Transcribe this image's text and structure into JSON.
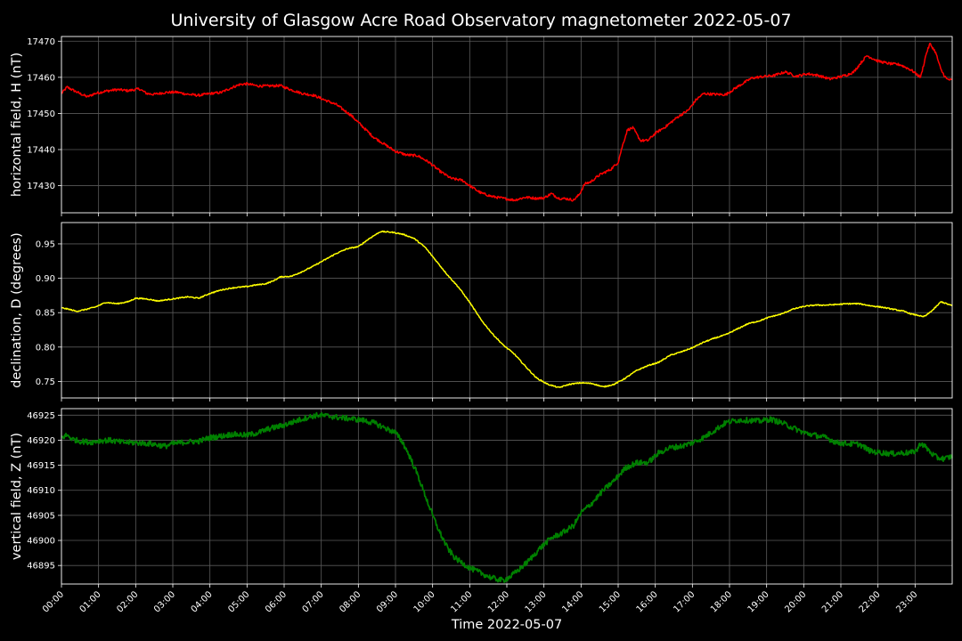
{
  "chart_data": {
    "type": "line",
    "title": "University of Glasgow Acre Road Observatory magnetometer 2022-05-07",
    "xlabel": "Time 2022-05-07",
    "x_tick_labels": [
      "00:00",
      "01:00",
      "02:00",
      "03:00",
      "04:00",
      "05:00",
      "06:00",
      "07:00",
      "08:00",
      "09:00",
      "10:00",
      "11:00",
      "12:00",
      "13:00",
      "14:00",
      "15:00",
      "16:00",
      "17:00",
      "18:00",
      "19:00",
      "20:00",
      "21:00",
      "22:00",
      "23:00"
    ],
    "x_unit": "hours",
    "xlim": [
      0,
      24
    ],
    "grid": true,
    "background": "#000000",
    "panels": [
      {
        "ylabel": "horizontal field, H (nT)",
        "color": "#ff0000",
        "ylim": [
          17422.5,
          17471.3
        ],
        "yticks": [
          17430,
          17440,
          17450,
          17460,
          17470
        ],
        "ytick_labels": [
          "17430",
          "17440",
          "17450",
          "17460",
          "17470"
        ],
        "noise": 0.35,
        "x": [
          0,
          0.15,
          0.3,
          0.5,
          0.7,
          0.9,
          1.2,
          1.5,
          1.8,
          2.1,
          2.3,
          2.5,
          2.8,
          3.1,
          3.4,
          3.7,
          4.0,
          4.3,
          4.6,
          4.8,
          5.0,
          5.3,
          5.6,
          5.9,
          6.2,
          6.5,
          6.8,
          7.1,
          7.4,
          7.8,
          8.1,
          8.4,
          8.7,
          9.0,
          9.3,
          9.6,
          9.9,
          10.2,
          10.5,
          10.8,
          11.0,
          11.3,
          11.6,
          11.9,
          12.2,
          12.5,
          12.8,
          13.0,
          13.2,
          13.4,
          13.6,
          13.8,
          13.95,
          14.1,
          14.25,
          14.5,
          14.8,
          15.0,
          15.1,
          15.25,
          15.4,
          15.6,
          15.8,
          16.0,
          16.3,
          16.6,
          16.9,
          17.1,
          17.3,
          17.6,
          17.9,
          18.2,
          18.6,
          18.9,
          19.2,
          19.5,
          19.8,
          20.1,
          20.4,
          20.7,
          21.0,
          21.2,
          21.35,
          21.5,
          21.7,
          22.0,
          22.3,
          22.6,
          22.9,
          23.15,
          23.3,
          23.4,
          23.55,
          23.7,
          23.85,
          24.0
        ],
        "y": [
          17455.5,
          17457.3,
          17456.5,
          17455.5,
          17454.6,
          17455.5,
          17456.2,
          17456.6,
          17456.3,
          17456.8,
          17455.5,
          17455.3,
          17455.8,
          17455.9,
          17455.3,
          17455.0,
          17455.5,
          17455.8,
          17457.2,
          17458.0,
          17458.2,
          17457.6,
          17457.6,
          17457.7,
          17456.5,
          17455.5,
          17455.0,
          17453.7,
          17452.5,
          17449.5,
          17446.5,
          17443.5,
          17441.5,
          17439.5,
          17438.5,
          17438.3,
          17436.5,
          17434.0,
          17432.0,
          17431.5,
          17430.0,
          17428.0,
          17427.0,
          17426.5,
          17426.0,
          17426.8,
          17426.5,
          17426.6,
          17427.8,
          17426.5,
          17426.4,
          17426.0,
          17427.5,
          17430.5,
          17431.0,
          17433.0,
          17434.5,
          17436.5,
          17440.5,
          17445.5,
          17446.0,
          17442.5,
          17442.5,
          17444.5,
          17446.5,
          17449.0,
          17451.0,
          17453.8,
          17455.5,
          17455.3,
          17455.2,
          17457.3,
          17459.8,
          17460.2,
          17460.5,
          17461.5,
          17460.3,
          17461.0,
          17460.5,
          17459.5,
          17460.2,
          17460.8,
          17461.5,
          17463.5,
          17466.0,
          17464.5,
          17463.8,
          17463.5,
          17462.0,
          17460.0,
          17466.5,
          17469.3,
          17467.0,
          17462.0,
          17459.5,
          17459.2
        ]
      },
      {
        "ylabel": "declination, D (degrees)",
        "color": "#ffff00",
        "ylim": [
          0.726,
          0.981
        ],
        "yticks": [
          0.75,
          0.8,
          0.85,
          0.9,
          0.95
        ],
        "ytick_labels": [
          "0.75",
          "0.80",
          "0.85",
          "0.90",
          "0.95"
        ],
        "noise": 0.0008,
        "x": [
          0,
          0.2,
          0.4,
          0.6,
          0.9,
          1.2,
          1.5,
          1.8,
          2.0,
          2.3,
          2.6,
          3.0,
          3.4,
          3.7,
          4.0,
          4.3,
          4.6,
          5.0,
          5.2,
          5.5,
          5.7,
          5.9,
          6.2,
          6.5,
          6.8,
          7.1,
          7.4,
          7.7,
          8.0,
          8.3,
          8.6,
          8.9,
          9.2,
          9.5,
          9.8,
          10.1,
          10.4,
          10.7,
          11.0,
          11.3,
          11.6,
          11.9,
          12.2,
          12.5,
          12.8,
          13.1,
          13.4,
          13.7,
          14.0,
          14.3,
          14.6,
          14.9,
          15.2,
          15.5,
          15.8,
          16.1,
          16.4,
          16.7,
          17.0,
          17.3,
          17.6,
          17.9,
          18.2,
          18.5,
          18.8,
          19.1,
          19.4,
          19.7,
          20.0,
          20.3,
          20.6,
          20.9,
          21.2,
          21.5,
          21.8,
          22.1,
          22.4,
          22.7,
          22.9,
          23.1,
          23.2,
          23.3,
          23.5,
          23.7,
          23.85,
          24.0
        ],
        "y": [
          0.857,
          0.855,
          0.852,
          0.854,
          0.858,
          0.865,
          0.863,
          0.866,
          0.871,
          0.87,
          0.867,
          0.87,
          0.873,
          0.871,
          0.878,
          0.883,
          0.886,
          0.888,
          0.89,
          0.892,
          0.896,
          0.902,
          0.903,
          0.91,
          0.918,
          0.927,
          0.936,
          0.943,
          0.946,
          0.958,
          0.968,
          0.967,
          0.964,
          0.958,
          0.945,
          0.925,
          0.905,
          0.887,
          0.865,
          0.84,
          0.82,
          0.803,
          0.79,
          0.772,
          0.755,
          0.746,
          0.741,
          0.746,
          0.748,
          0.747,
          0.742,
          0.746,
          0.755,
          0.766,
          0.773,
          0.778,
          0.788,
          0.793,
          0.799,
          0.807,
          0.813,
          0.818,
          0.826,
          0.834,
          0.838,
          0.844,
          0.848,
          0.855,
          0.859,
          0.861,
          0.861,
          0.862,
          0.863,
          0.863,
          0.86,
          0.858,
          0.855,
          0.852,
          0.848,
          0.846,
          0.844,
          0.846,
          0.855,
          0.866,
          0.863,
          0.86
        ],
        "x_full": [
          0,
          0.25,
          0.5,
          0.75,
          1,
          1.25,
          1.5,
          1.75,
          2,
          2.25,
          2.5,
          2.75,
          3,
          3.25,
          3.5,
          3.75,
          4,
          4.25,
          4.5,
          4.75,
          5,
          5.25,
          5.5,
          5.75,
          6,
          6.25,
          6.5,
          6.75,
          7,
          7.25,
          7.5,
          7.75,
          8,
          8.25,
          8.5,
          8.75,
          9,
          9.25,
          9.5,
          9.75,
          10,
          10.25,
          10.5,
          10.75,
          11,
          11.25,
          11.5,
          11.75,
          12,
          12.25,
          12.5,
          12.75,
          13,
          13.25,
          13.5,
          13.75,
          14,
          14.25,
          14.5,
          14.75,
          15,
          15.25,
          15.5,
          15.75,
          16,
          16.25,
          16.5,
          16.75,
          17,
          17.25,
          17.5,
          17.75,
          18,
          18.25,
          18.5,
          18.75,
          19,
          19.25,
          19.5,
          19.75,
          20,
          20.25,
          20.5,
          20.75,
          21,
          21.25,
          21.5,
          21.75,
          22,
          22.25,
          22.5,
          22.75,
          23,
          23.25,
          23.5,
          23.75,
          24
        ]
      },
      {
        "ylabel": "vertical field, Z (nT)",
        "color": "#008000",
        "ylim": [
          46891.3,
          46926.3
        ],
        "yticks": [
          46895,
          46900,
          46905,
          46910,
          46915,
          46920,
          46925
        ],
        "ytick_labels": [
          "46895",
          "46900",
          "46905",
          "46910",
          "46915",
          "46920",
          "46925"
        ],
        "noise": 0.55,
        "x": [
          0,
          0.15,
          0.3,
          0.5,
          0.8,
          1.0,
          1.3,
          1.6,
          2.0,
          2.4,
          2.8,
          3.0,
          3.3,
          3.7,
          4.0,
          4.3,
          4.6,
          5.0,
          5.3,
          5.6,
          6.0,
          6.3,
          6.6,
          6.9,
          7.2,
          7.5,
          7.8,
          8.1,
          8.4,
          8.7,
          9.0,
          9.2,
          9.4,
          9.6,
          9.8,
          10.0,
          10.2,
          10.4,
          10.6,
          10.8,
          11.0,
          11.3,
          11.6,
          11.9,
          12.1,
          12.3,
          12.6,
          12.9,
          13.2,
          13.5,
          13.8,
          14.0,
          14.3,
          14.6,
          14.9,
          15.2,
          15.5,
          15.8,
          16.1,
          16.4,
          16.7,
          17.0,
          17.3,
          17.6,
          17.9,
          18.2,
          18.5,
          18.8,
          19.1,
          19.4,
          19.7,
          20.0,
          20.3,
          20.6,
          20.9,
          21.2,
          21.5,
          21.8,
          22.1,
          22.4,
          22.7,
          22.9,
          23.05,
          23.15,
          23.3,
          23.45,
          23.6,
          23.8,
          24.0
        ],
        "y": [
          46920.5,
          46921.0,
          46920.2,
          46919.8,
          46919.6,
          46919.9,
          46920.0,
          46919.6,
          46919.5,
          46919.3,
          46918.8,
          46919.3,
          46919.6,
          46919.8,
          46920.5,
          46920.8,
          46921.2,
          46921.0,
          46921.5,
          46922.3,
          46923.0,
          46923.8,
          46924.5,
          46925.0,
          46924.8,
          46924.5,
          46924.3,
          46924.0,
          46923.5,
          46922.5,
          46921.5,
          46919.5,
          46916.5,
          46913.0,
          46909.0,
          46905.0,
          46901.5,
          46898.5,
          46896.5,
          46895.5,
          46894.5,
          46893.5,
          46892.5,
          46892.0,
          46892.8,
          46894.0,
          46896.0,
          46898.5,
          46900.5,
          46901.5,
          46903.0,
          46905.5,
          46907.5,
          46910.0,
          46912.0,
          46914.5,
          46915.5,
          46915.5,
          46917.5,
          46918.5,
          46918.8,
          46919.5,
          46920.5,
          46922.0,
          46923.5,
          46924.0,
          46924.0,
          46923.8,
          46924.2,
          46923.5,
          46922.5,
          46921.5,
          46921.0,
          46920.5,
          46919.5,
          46919.3,
          46919.2,
          46917.8,
          46917.5,
          46917.3,
          46917.5,
          46917.5,
          46918.0,
          46919.5,
          46918.5,
          46917.3,
          46916.5,
          46916.3,
          46916.8
        ]
      }
    ]
  }
}
